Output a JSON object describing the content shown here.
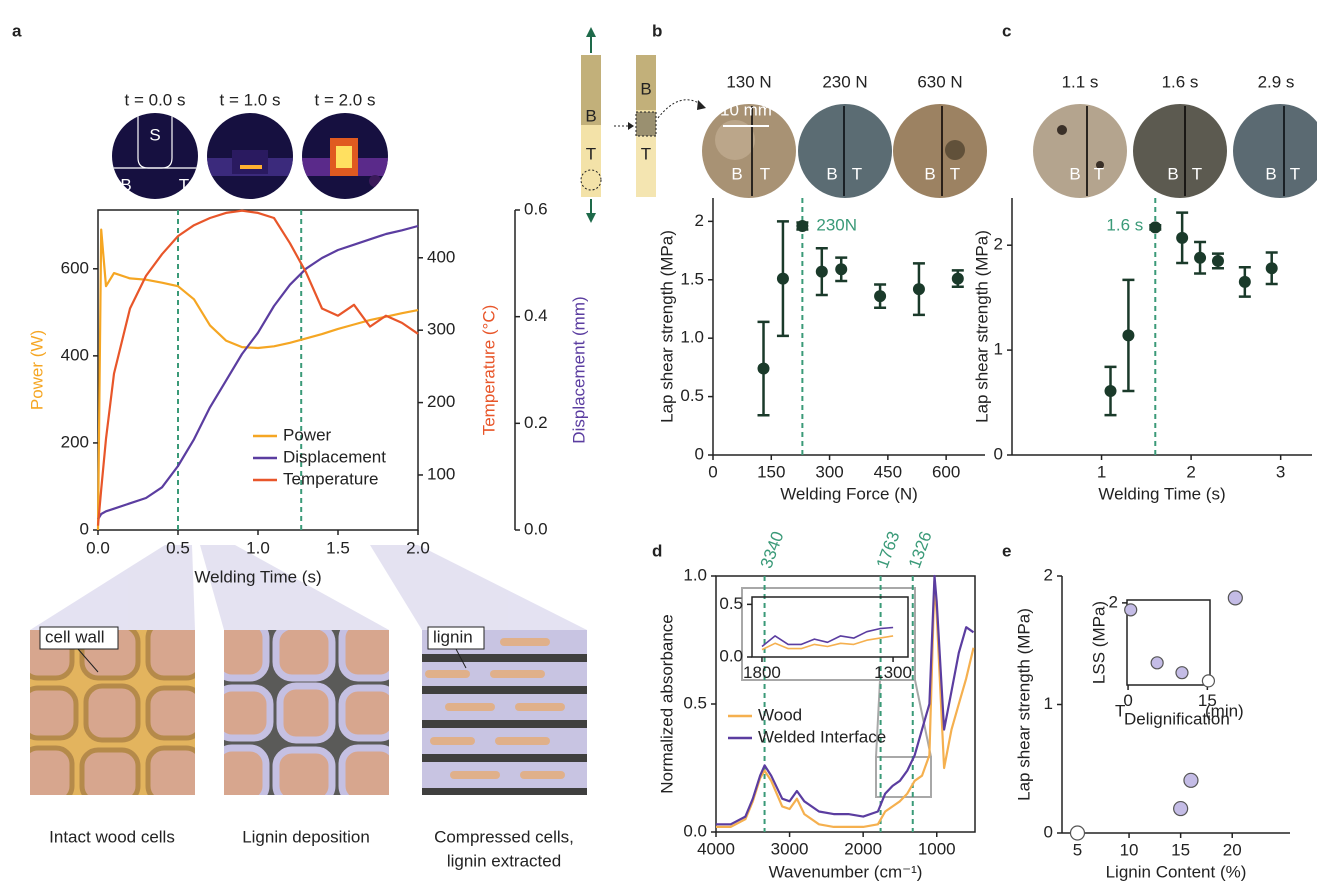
{
  "chart_data": [
    {
      "label": "a",
      "type": "line",
      "x": [
        0,
        0.02,
        0.05,
        0.1,
        0.2,
        0.3,
        0.4,
        0.5,
        0.6,
        0.7,
        0.8,
        0.9,
        1.0,
        1.1,
        1.2,
        1.3,
        1.4,
        1.5,
        1.6,
        1.7,
        1.8,
        1.9,
        2.0
      ],
      "xlim": [
        0,
        2
      ],
      "xticks": [
        {
          "value": 0,
          "label": "0.0"
        },
        0.5,
        {
          "value": 1,
          "label": "1.0"
        },
        1.5,
        {
          "value": 2,
          "label": "2.0"
        }
      ],
      "xlabel": "Welding Time (s)",
      "ylabel": "Power (W)",
      "ylim": [
        0,
        735
      ],
      "yticks": [
        0,
        200,
        400,
        600
      ],
      "y2label": "Temperature (°C)",
      "y2lim": [
        24,
        466
      ],
      "y2ticks": [
        100,
        200,
        300,
        400
      ],
      "y3label": "Displacement (mm)",
      "y3lim": [
        0,
        0.6
      ],
      "y3ticks": [
        {
          "value": 0,
          "label": "0.0"
        },
        0.2,
        0.4,
        0.6
      ],
      "series": [
        {
          "name": "Power",
          "color": "#f5a623",
          "values": [
            0,
            690,
            560,
            590,
            578,
            575,
            568,
            560,
            530,
            470,
            435,
            420,
            418,
            422,
            430,
            440,
            450,
            462,
            472,
            482,
            490,
            498,
            505
          ]
        },
        {
          "name": "Displacement",
          "color": "#5b3da0",
          "axis": "y3",
          "values": [
            0.02,
            0.03,
            0.035,
            0.04,
            0.05,
            0.06,
            0.08,
            0.12,
            0.17,
            0.23,
            0.28,
            0.33,
            0.37,
            0.42,
            0.46,
            0.49,
            0.51,
            0.525,
            0.535,
            0.545,
            0.555,
            0.562,
            0.57
          ]
        },
        {
          "name": "Temperature",
          "color": "#e8562a",
          "axis": "y2",
          "values": [
            30,
            80,
            150,
            240,
            330,
            375,
            405,
            430,
            445,
            455,
            462,
            465,
            462,
            455,
            420,
            380,
            330,
            320,
            335,
            305,
            320,
            310,
            295
          ]
        }
      ],
      "vlines": [
        0.5,
        1.27
      ],
      "vline_color": "#3a9a78",
      "legend": "lower right"
    },
    {
      "label": "b",
      "type": "errorbar",
      "x": [
        130,
        180,
        230,
        280,
        330,
        430,
        530,
        630
      ],
      "values": [
        0.74,
        1.51,
        1.96,
        1.57,
        1.59,
        1.36,
        1.42,
        1.51
      ],
      "errors": [
        0.4,
        0.49,
        0.03,
        0.2,
        0.1,
        0.1,
        0.22,
        0.07
      ],
      "color": "#1a3a2a",
      "xlim": [
        0,
        700
      ],
      "xticks": [
        0,
        150,
        300,
        450,
        600
      ],
      "ylim": [
        0,
        2.2
      ],
      "yticks": [
        0,
        0.5,
        {
          "value": 1,
          "label": "1.0"
        },
        1.5,
        2
      ],
      "xlabel": "Welding Force (N)",
      "ylabel": "Lap shear strength (MPa)",
      "vlines": [
        230
      ],
      "vline_color": "#3a9a78",
      "annotation": "230N"
    },
    {
      "label": "c",
      "type": "errorbar",
      "x": [
        1.1,
        1.3,
        1.6,
        1.9,
        2.1,
        2.3,
        2.6,
        2.9
      ],
      "values": [
        0.61,
        1.14,
        2.17,
        2.07,
        1.88,
        1.85,
        1.65,
        1.78
      ],
      "errors": [
        0.23,
        0.53,
        0.02,
        0.24,
        0.15,
        0.07,
        0.14,
        0.15
      ],
      "color": "#1a3a2a",
      "xlim": [
        0,
        3.35
      ],
      "xticks": [
        1,
        2,
        3
      ],
      "ylim": [
        0,
        2.45
      ],
      "yticks": [
        0,
        1,
        2
      ],
      "xlabel": "Welding Time (s)",
      "ylabel": "Lap shear strength (MPa)",
      "vlines": [
        1.6
      ],
      "vline_color": "#3a9a78",
      "annotation": "1.6 s"
    },
    {
      "label": "d",
      "type": "line",
      "x": [
        4000,
        3800,
        3600,
        3500,
        3400,
        3340,
        3250,
        3100,
        3000,
        2900,
        2800,
        2600,
        2400,
        2200,
        2000,
        1800,
        1700,
        1600,
        1500,
        1400,
        1300,
        1200,
        1100,
        1030,
        1000,
        900,
        800,
        700,
        600,
        500
      ],
      "xlim": [
        4000,
        480
      ],
      "xticks": [
        4000,
        3000,
        2000,
        1000
      ],
      "ylim": [
        0,
        1
      ],
      "yticks": [
        {
          "value": 0,
          "label": "0.0"
        },
        0.5,
        {
          "value": 1,
          "label": "1.0"
        }
      ],
      "xlabel": "Wavenumber (cm⁻¹)",
      "ylabel": "Normalized absorbance",
      "series": [
        {
          "name": "Wood",
          "color": "#f5b04f",
          "values": [
            0.02,
            0.02,
            0.05,
            0.12,
            0.21,
            0.24,
            0.2,
            0.1,
            0.09,
            0.13,
            0.07,
            0.03,
            0.02,
            0.02,
            0.02,
            0.03,
            0.08,
            0.1,
            0.12,
            0.15,
            0.2,
            0.22,
            0.3,
            0.98,
            0.85,
            0.25,
            0.4,
            0.5,
            0.6,
            0.72
          ]
        },
        {
          "name": "Welded Interface",
          "color": "#5b3da0",
          "values": [
            0.03,
            0.03,
            0.06,
            0.13,
            0.22,
            0.26,
            0.22,
            0.13,
            0.12,
            0.16,
            0.12,
            0.08,
            0.07,
            0.07,
            0.06,
            0.08,
            0.15,
            0.18,
            0.2,
            0.24,
            0.3,
            0.4,
            0.5,
            1.0,
            0.9,
            0.4,
            0.55,
            0.7,
            0.8,
            0.78
          ]
        }
      ],
      "vlines": [
        3340,
        1763,
        1326
      ],
      "vline_color": "#3a9a78",
      "vline_labels": true,
      "legend": "center left"
    },
    {
      "type": "line",
      "x": [
        1800,
        1750,
        1700,
        1650,
        1600,
        1550,
        1500,
        1450,
        1400,
        1350,
        1300
      ],
      "xlim": [
        1838,
        1243
      ],
      "xticks": [
        1800,
        1300
      ],
      "ylim": [
        0,
        0.57
      ],
      "yticks": [
        {
          "value": 0,
          "label": "0.0"
        },
        0.5
      ],
      "series": [
        {
          "color": "#f5b04f",
          "values": [
            0.07,
            0.13,
            0.08,
            0.08,
            0.12,
            0.1,
            0.13,
            0.12,
            0.16,
            0.18,
            0.2
          ]
        },
        {
          "color": "#5b3da0",
          "values": [
            0.1,
            0.2,
            0.12,
            0.12,
            0.17,
            0.14,
            0.2,
            0.18,
            0.24,
            0.27,
            0.28
          ]
        }
      ]
    },
    {
      "label": "e",
      "type": "scatter",
      "x": [
        5,
        15,
        16,
        20.3
      ],
      "values": [
        0,
        0.19,
        0.41,
        1.83
      ],
      "point_colors": [
        "#ffffff",
        "#c4bce6",
        "#c4bce6",
        "#c4bce6"
      ],
      "xlim": [
        3.5,
        25.6
      ],
      "xticks": [
        5,
        10,
        15,
        20
      ],
      "ylim": [
        0,
        2
      ],
      "yticks": [
        0,
        1,
        2
      ],
      "xlabel": "Lignin Content (%)",
      "ylabel": "Lap shear strength (MPa)"
    },
    {
      "type": "scatter",
      "x": [
        0.5,
        5.5,
        10.2,
        15.2
      ],
      "values": [
        1.83,
        0.54,
        0.3,
        0.1
      ],
      "point_colors": [
        "#c4bce6",
        "#c4bce6",
        "#c4bce6",
        "#ffffff"
      ],
      "xlim": [
        -0.2,
        15.5
      ],
      "xticks": [
        0,
        15
      ],
      "ylim": [
        0,
        2.07
      ],
      "yticks": [
        2
      ],
      "xlabel": "T",
      "xlabel_sub": "Delignification",
      "xlabel_unit": "(min)",
      "ylabel": "LSS (MPa)"
    }
  ],
  "figure": {
    "thermal_times": [
      "t = 0.0 s",
      "t = 1.0 s",
      "t = 2.0 s"
    ],
    "thermal_regions": [
      "S",
      "B",
      "T"
    ],
    "strip": [
      "B",
      "T"
    ],
    "force_photos": [
      "130 N",
      "230 N",
      "630 N"
    ],
    "scale_bar": "10 mm",
    "photo_sides": [
      "B",
      "T"
    ],
    "time_photos": [
      "1.1 s",
      "1.6 s",
      "2.9 s"
    ],
    "cells": [
      {
        "caption": "Intact wood cells",
        "tag": "cell wall"
      },
      {
        "caption": "Lignin deposition"
      },
      {
        "caption": [
          "Compressed cells,",
          "lignin extracted"
        ],
        "tag": "lignin"
      }
    ]
  }
}
